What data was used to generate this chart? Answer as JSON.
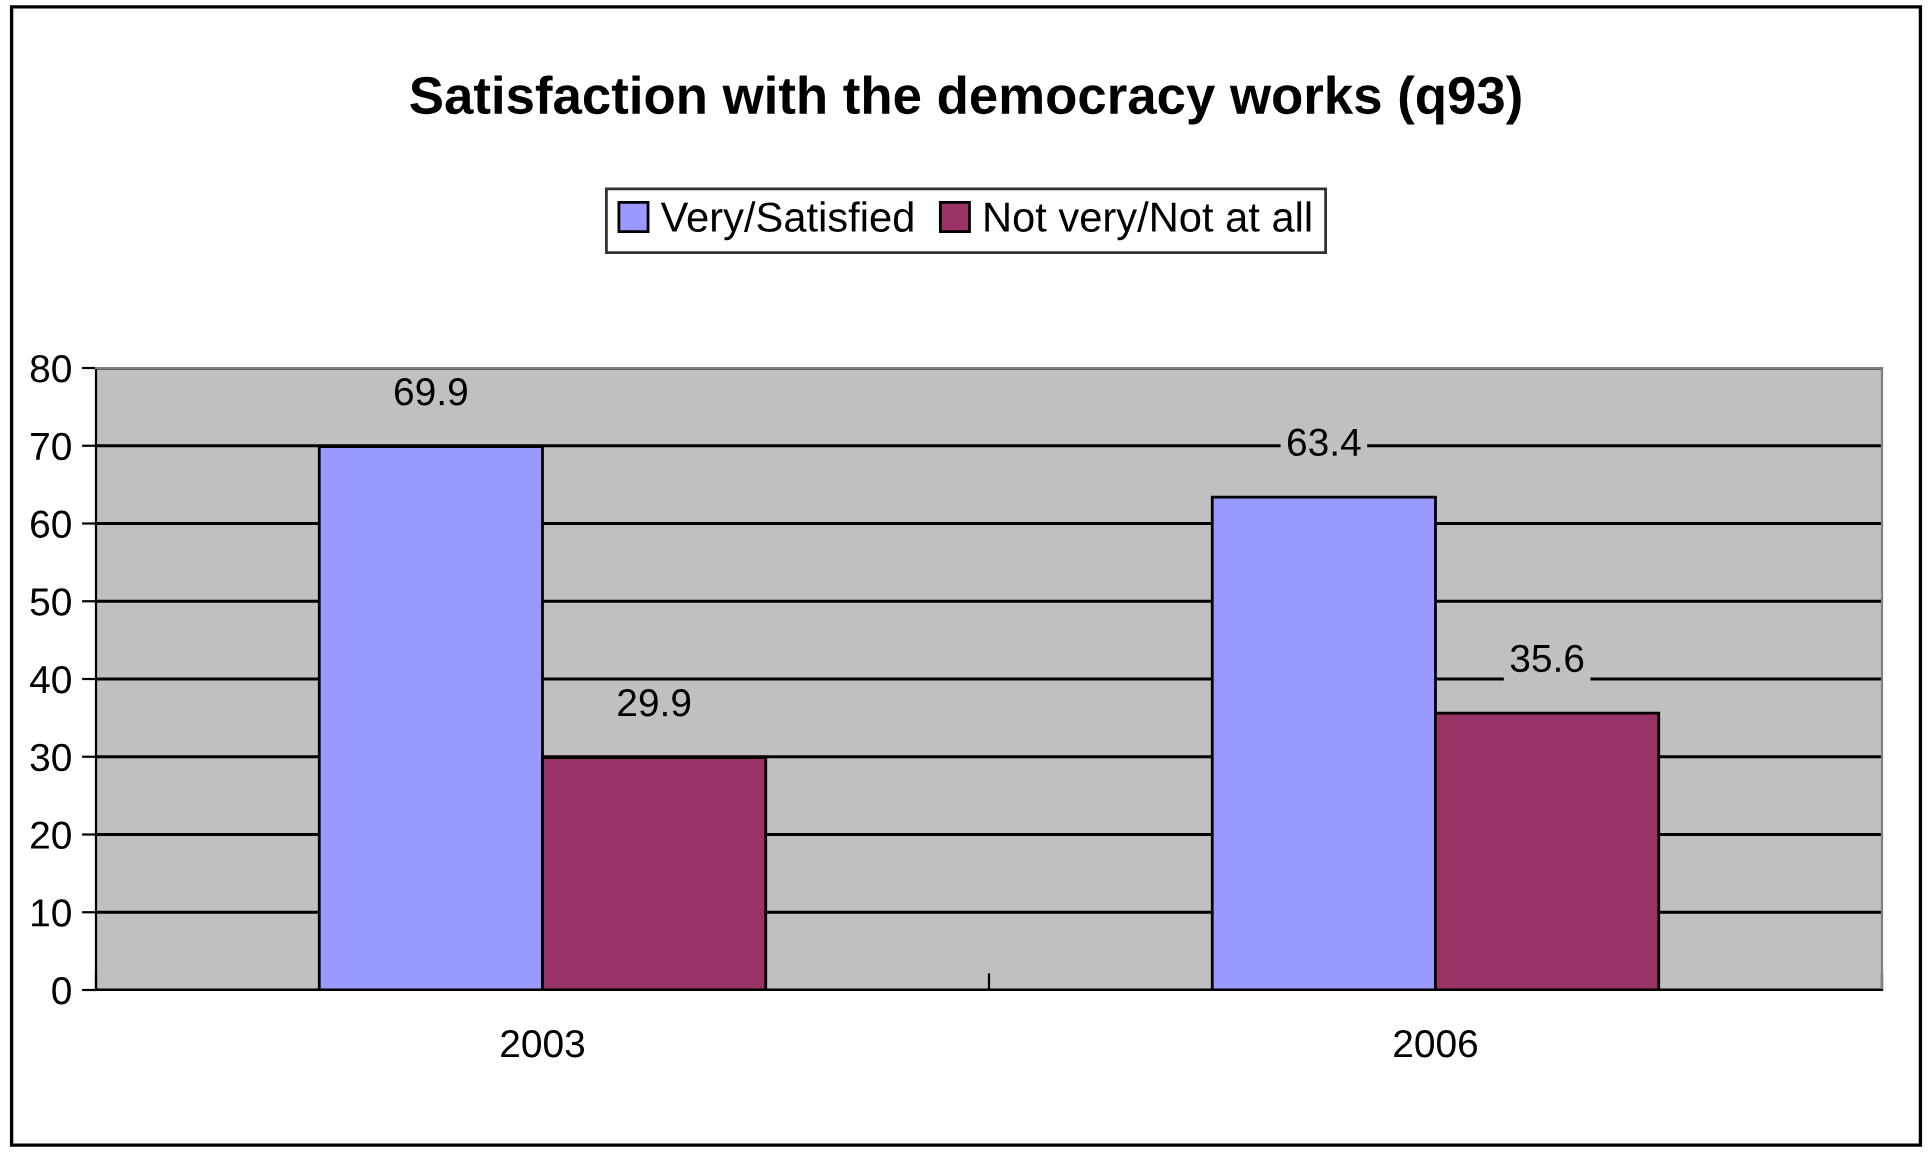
{
  "chart_data": {
    "type": "bar",
    "title": "Satisfaction with the democracy works (q93)",
    "categories": [
      "2003",
      "2006"
    ],
    "series": [
      {
        "name": "Very/Satisfied",
        "color": "#9999ff",
        "values": [
          69.9,
          63.4
        ]
      },
      {
        "name": "Not very/Not at all",
        "color": "#993366",
        "values": [
          29.9,
          35.6
        ]
      }
    ],
    "ylim": [
      0,
      80
    ],
    "yticks": [
      0,
      10,
      20,
      30,
      40,
      50,
      60,
      70,
      80
    ],
    "grid": "y",
    "legend": "top",
    "data_labels": true
  }
}
